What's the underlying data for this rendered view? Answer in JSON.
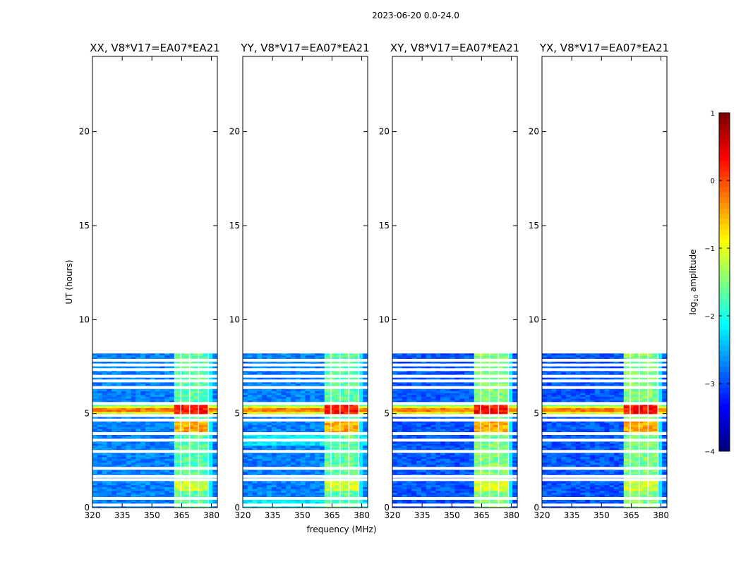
{
  "figure": {
    "suptitle": "2023-06-20 0.0-24.0",
    "xlabel": "frequency (MHz)",
    "ylabel": "UT (hours)"
  },
  "chart_data": {
    "type": "heatmap",
    "panels": [
      {
        "title": "XX, V8*V17=EA07*EA21",
        "pol": "XX"
      },
      {
        "title": "YY, V8*V17=EA07*EA21",
        "pol": "YY"
      },
      {
        "title": "XY, V8*V17=EA07*EA21",
        "pol": "XY"
      },
      {
        "title": "YX, V8*V17=EA07*EA21",
        "pol": "YX"
      }
    ],
    "xlim": [
      320,
      383
    ],
    "xticks": [
      320,
      335,
      350,
      365,
      380
    ],
    "ylim": [
      0,
      24
    ],
    "yticks": [
      0,
      5,
      10,
      15,
      20
    ],
    "data_extent_hours": [
      0.0,
      8.2
    ],
    "band_channels_mhz": [
      [
        360,
        364.5
      ],
      [
        364.5,
        369
      ],
      [
        369,
        373.5
      ],
      [
        373.5,
        378.5
      ]
    ],
    "gap_rows_hours": [
      0.1,
      0.45,
      1.45,
      1.62,
      2.05,
      2.95,
      3.55,
      3.9,
      4.62,
      4.86,
      5.5,
      6.35,
      6.7,
      6.95,
      7.3,
      7.55,
      7.8
    ],
    "flare_interval_hours": [
      4.9,
      5.5
    ],
    "colorbar": {
      "label_prefix": "log",
      "label_sub": "10",
      "label_suffix": " amplitude",
      "range": [
        -4,
        1
      ],
      "ticks": [
        -4,
        -3,
        -2,
        -1,
        0,
        1
      ],
      "colormap": "jet"
    }
  }
}
